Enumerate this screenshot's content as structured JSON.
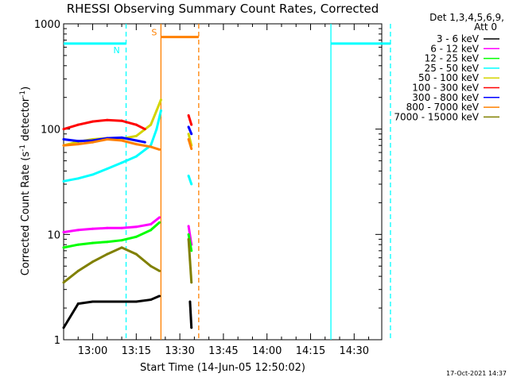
{
  "chart_data": {
    "type": "line",
    "title": "RHESSI Observing Summary Count Rates, Corrected",
    "xlabel": "Start Time (14-Jun-05 12:50:02)",
    "ylabel_parts": [
      "Corrected Count Rate (s",
      "-1",
      " detector",
      "-1",
      ")"
    ],
    "yscale": "log",
    "ylim": [
      1,
      1000
    ],
    "xlim": [
      "12:50",
      "14:30"
    ],
    "x_tick_labels": [
      "13:00",
      "13:15",
      "13:30",
      "13:45",
      "14:00",
      "14:15",
      "14:30"
    ],
    "x_tick_minutes": [
      10,
      25,
      40,
      55,
      70,
      85,
      100
    ],
    "y_tick_labels": [
      "1",
      "10",
      "100",
      "1000"
    ],
    "y_tick_values": [
      1,
      10,
      100,
      1000
    ],
    "timestamp": "17-Oct-2021 14:37",
    "legend_header": [
      "Det 1,3,4,5,6,9,",
      "Att 0"
    ],
    "legend_position": "right",
    "series": [
      {
        "name": "3 - 6 keV",
        "color": "#000000",
        "x": [
          0,
          5,
          10,
          15,
          20,
          25,
          30,
          33,
          43.5,
          44
        ],
        "y": [
          1.3,
          2.2,
          2.3,
          2.3,
          2.3,
          2.3,
          2.4,
          2.6,
          2.3,
          1.3
        ]
      },
      {
        "name": "6 - 12 keV",
        "color": "#ff00ff",
        "x": [
          0,
          5,
          10,
          15,
          20,
          25,
          30,
          33,
          43,
          44
        ],
        "y": [
          10.5,
          11,
          11.3,
          11.5,
          11.5,
          11.8,
          12.5,
          14.5,
          12,
          8
        ]
      },
      {
        "name": "12 - 25 keV",
        "color": "#00ff00",
        "x": [
          0,
          5,
          10,
          15,
          20,
          25,
          30,
          33,
          43,
          44
        ],
        "y": [
          7.5,
          8,
          8.3,
          8.5,
          8.8,
          9.5,
          11,
          13,
          10,
          7
        ]
      },
      {
        "name": "25 - 50 keV",
        "color": "#00ffff",
        "x": [
          0,
          5,
          10,
          15,
          20,
          25,
          30,
          32,
          33.5,
          43,
          44
        ],
        "y": [
          32,
          34,
          37,
          42,
          48,
          55,
          70,
          100,
          150,
          36,
          30
        ]
      },
      {
        "name": "50 - 100 keV",
        "color": "#d4d400",
        "x": [
          0,
          5,
          10,
          15,
          20,
          25,
          30,
          32,
          33.5,
          43,
          44
        ],
        "y": [
          70,
          76,
          80,
          82,
          81,
          86,
          110,
          150,
          190,
          90,
          70
        ]
      },
      {
        "name": "100 - 300 keV",
        "color": "#ff0000",
        "x": [
          0,
          5,
          10,
          15,
          20,
          25,
          28,
          43,
          44
        ],
        "y": [
          100,
          110,
          118,
          122,
          120,
          110,
          100,
          135,
          110
        ]
      },
      {
        "name": "300 - 800 keV",
        "color": "#0000ff",
        "x": [
          0,
          5,
          10,
          15,
          20,
          25,
          28,
          43,
          44
        ],
        "y": [
          80,
          77,
          78,
          82,
          83,
          78,
          75,
          105,
          90
        ]
      },
      {
        "name": "800 - 7000 keV",
        "color": "#ff8000",
        "x": [
          0,
          5,
          10,
          15,
          20,
          25,
          30,
          33,
          43,
          44
        ],
        "y": [
          70,
          72,
          75,
          80,
          78,
          72,
          68,
          64,
          80,
          65
        ]
      },
      {
        "name": "7000 - 15000 keV",
        "color": "#808000",
        "x": [
          0,
          5,
          10,
          15,
          20,
          25,
          30,
          33,
          43,
          44
        ],
        "y": [
          3.5,
          4.5,
          5.5,
          6.5,
          7.5,
          6.5,
          5,
          4.5,
          9,
          3.5
        ]
      }
    ],
    "annotations": [
      {
        "label": "N",
        "color": "#00ffff",
        "start_min": 0,
        "end_min": 21.5,
        "level": 650
      },
      {
        "label": "",
        "color": "#00ffff",
        "start_min": 92,
        "end_min": 112.5,
        "level": 650
      },
      {
        "label": "S",
        "color": "#ff8000",
        "start_min": 33.5,
        "end_min": 46.5,
        "level": 750
      }
    ],
    "vlines": [
      {
        "minute": 21.5,
        "color": "#00ffff",
        "style": "dashed"
      },
      {
        "minute": 33.5,
        "color": "#ff8000",
        "style": "solid"
      },
      {
        "minute": 46.5,
        "color": "#ff8000",
        "style": "dashed"
      },
      {
        "minute": 92,
        "color": "#00ffff",
        "style": "solid"
      },
      {
        "minute": 112.5,
        "color": "#00ffff",
        "style": "dashed"
      }
    ]
  }
}
